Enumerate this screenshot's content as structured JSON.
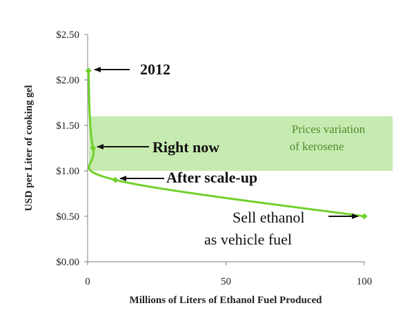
{
  "chart_data": {
    "type": "line",
    "title": "",
    "xlabel": "Millions of Liters of Ethanol Fuel Produced",
    "ylabel": "USD per Liter of cooking gel",
    "xlim": [
      0,
      100
    ],
    "ylim": [
      0,
      2.5
    ],
    "x_ticks": [
      "0",
      "50",
      "100"
    ],
    "y_ticks": [
      "$0.00",
      "$0.50",
      "$1.00",
      "$1.50",
      "$2.00",
      "$2.50"
    ],
    "grid": false,
    "legend": "none",
    "series": [
      {
        "points": [
          {
            "x": 0.3,
            "y": 2.1
          },
          {
            "x": 2,
            "y": 1.25
          },
          {
            "x": 10,
            "y": 0.9
          },
          {
            "x": 100,
            "y": 0.5
          }
        ]
      }
    ],
    "band": {
      "label_line1": "Prices variation",
      "label_line2": "of kerosene",
      "y_range": [
        1.0,
        1.6
      ]
    },
    "annotations": {
      "a2012": "2012",
      "right_now": "Right now",
      "after_scale_up": "After scale-up",
      "sell_line1": "Sell ethanol",
      "sell_line2": "as vehicle fuel"
    },
    "colors": {
      "line": "#6fd12a",
      "marker": "#6fd12a",
      "band": "#c6ebb0",
      "band_text": "#4f8a2e",
      "axis": "#7f7f7f"
    }
  }
}
